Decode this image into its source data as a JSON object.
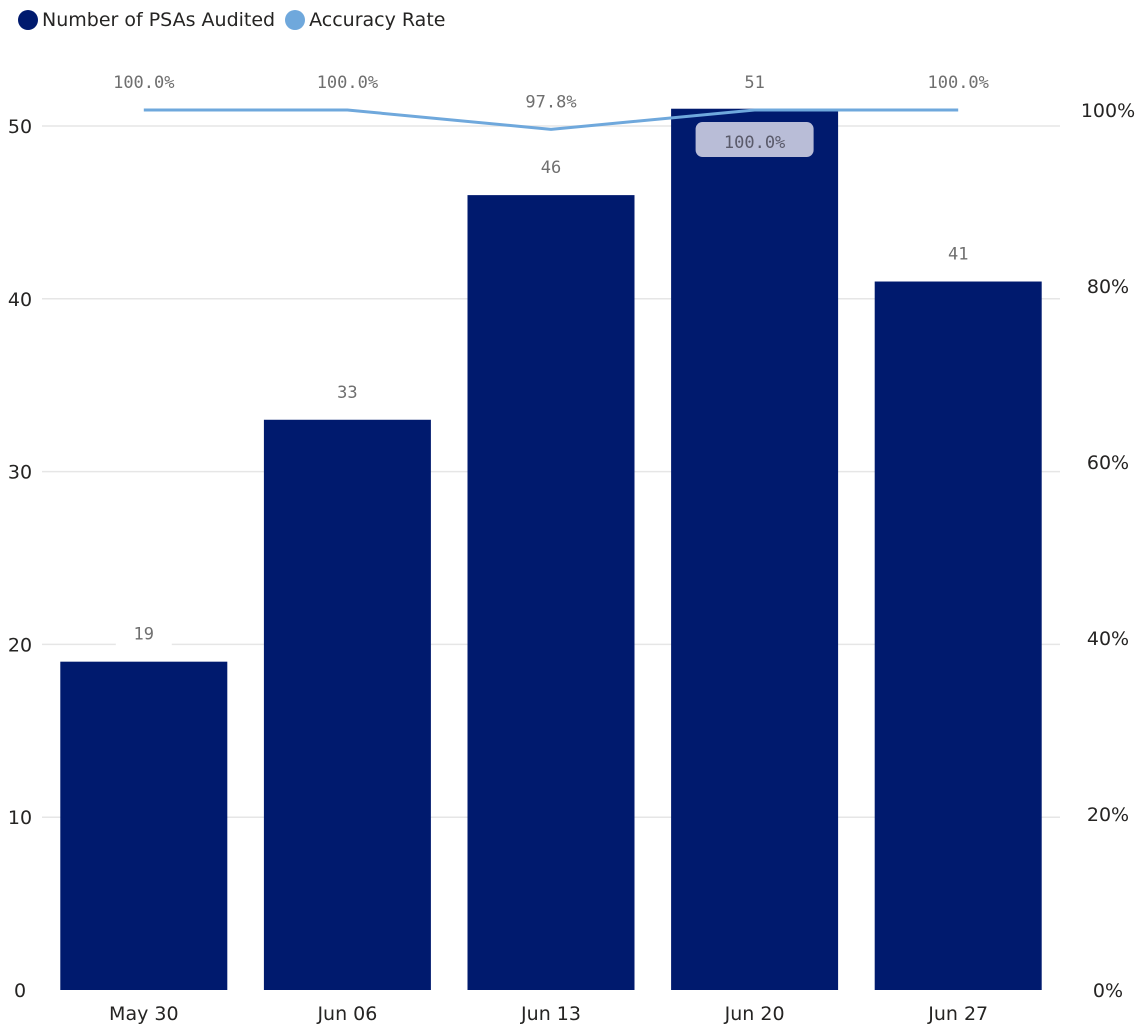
{
  "legend": {
    "items": [
      {
        "label": "Number of PSAs Audited",
        "color": "#001A6E"
      },
      {
        "label": "Accuracy Rate",
        "color": "#6FA8DC"
      }
    ]
  },
  "chart_data": {
    "type": "bar",
    "categories": [
      "May 30",
      "Jun 06",
      "Jun 13",
      "Jun 20",
      "Jun 27"
    ],
    "series": [
      {
        "name": "Number of PSAs Audited",
        "type": "bar",
        "axis": "left",
        "values": [
          19,
          33,
          46,
          51,
          41
        ],
        "labels": [
          "19",
          "33",
          "46",
          "51",
          "41"
        ],
        "color": "#001A6E"
      },
      {
        "name": "Accuracy Rate",
        "type": "line",
        "axis": "right",
        "values": [
          100.0,
          100.0,
          97.8,
          100.0,
          100.0
        ],
        "labels": [
          "100.0%",
          "100.0%",
          "97.8%",
          "100.0%",
          "100.0%"
        ],
        "color": "#6FA8DC"
      }
    ],
    "y_left": {
      "ticks": [
        "0",
        "10",
        "20",
        "30",
        "40",
        "50"
      ],
      "range": [
        0,
        50
      ]
    },
    "y_right": {
      "ticks": [
        "0%",
        "20%",
        "40%",
        "60%",
        "80%",
        "100%"
      ],
      "range": [
        0,
        100
      ]
    },
    "grid": true,
    "legend_position": "top-left"
  }
}
